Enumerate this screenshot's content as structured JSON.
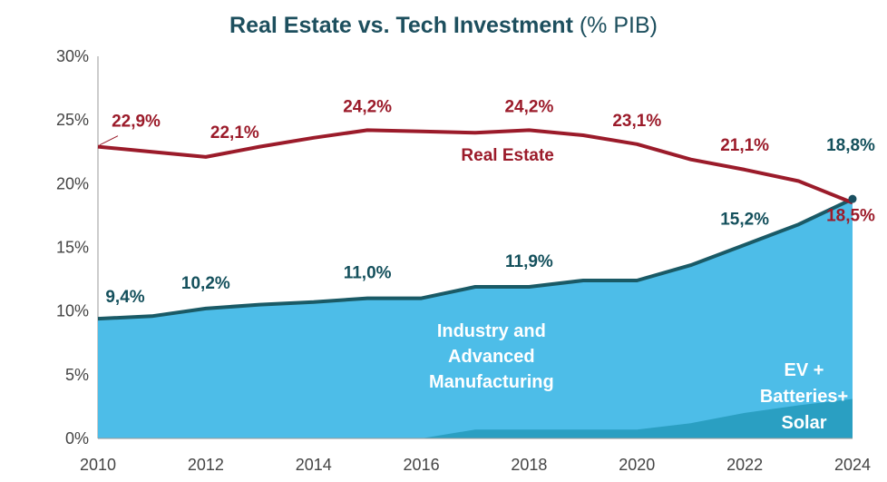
{
  "chart_data": {
    "type": "area",
    "title": "Real Estate vs. Tech Investment",
    "title_unit": "(% PIB)",
    "x": [
      2010,
      2011,
      2012,
      2013,
      2014,
      2015,
      2016,
      2017,
      2018,
      2019,
      2020,
      2021,
      2022,
      2023,
      2024
    ],
    "x_ticks": [
      "2010",
      "2012",
      "2014",
      "2016",
      "2018",
      "2020",
      "2022",
      "2024"
    ],
    "y_ticks": [
      "0%",
      "5%",
      "10%",
      "15%",
      "20%",
      "25%",
      "30%"
    ],
    "ylim": [
      0,
      30
    ],
    "grid": false,
    "series": [
      {
        "name": "Real Estate",
        "kind": "line",
        "color": "#9b1b2a",
        "values": [
          22.9,
          22.5,
          22.1,
          22.9,
          23.6,
          24.2,
          24.1,
          24.0,
          24.2,
          23.8,
          23.1,
          21.9,
          21.1,
          20.2,
          18.5
        ]
      },
      {
        "name": "Industry and Advanced Manufacturing",
        "kind": "area",
        "color": "#4dbde8",
        "edge_color": "#1a5a66",
        "values": [
          9.4,
          9.6,
          10.2,
          10.5,
          10.7,
          11.0,
          11.0,
          11.9,
          11.9,
          12.4,
          12.4,
          13.6,
          15.2,
          16.8,
          18.8
        ]
      },
      {
        "name": "EV + Batteries+ Solar",
        "kind": "area",
        "color": "#2a9fc2",
        "values": [
          0,
          0,
          0,
          0,
          0,
          0,
          0,
          0.7,
          0.7,
          0.7,
          0.7,
          1.2,
          2.0,
          2.6,
          3.1
        ]
      }
    ],
    "point_labels": [
      {
        "series": "Real Estate",
        "x": 2010,
        "text": "22,9%"
      },
      {
        "series": "Real Estate",
        "x": 2012,
        "text": "22,1%"
      },
      {
        "series": "Real Estate",
        "x": 2015,
        "text": "24,2%"
      },
      {
        "series": "Real Estate",
        "x": 2018,
        "text": "24,2%"
      },
      {
        "series": "Real Estate",
        "x": 2020,
        "text": "23,1%"
      },
      {
        "series": "Real Estate",
        "x": 2022,
        "text": "21,1%"
      },
      {
        "series": "Real Estate",
        "x": 2024,
        "text": "18,5%"
      },
      {
        "series": "Industry and Advanced Manufacturing",
        "x": 2010,
        "text": "9,4%"
      },
      {
        "series": "Industry and Advanced Manufacturing",
        "x": 2012,
        "text": "10,2%"
      },
      {
        "series": "Industry and Advanced Manufacturing",
        "x": 2015,
        "text": "11,0%"
      },
      {
        "series": "Industry and Advanced Manufacturing",
        "x": 2018,
        "text": "11,9%"
      },
      {
        "series": "Industry and Advanced Manufacturing",
        "x": 2022,
        "text": "15,2%"
      },
      {
        "series": "Industry and Advanced Manufacturing",
        "x": 2024,
        "text": "18,8%"
      }
    ],
    "area_labels": {
      "real_estate": "Real Estate",
      "industry": [
        "Industry and",
        "Advanced",
        "Manufacturing"
      ],
      "ev": [
        "EV +",
        "Batteries+",
        "Solar"
      ]
    }
  }
}
